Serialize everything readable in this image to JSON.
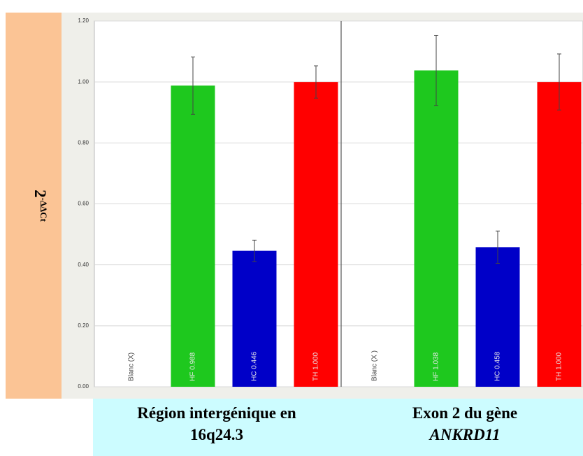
{
  "chart_data": [
    {
      "type": "bar",
      "ylabel": {
        "base": "2",
        "exponent": "-ΔΔCt"
      },
      "xlabel": [
        "Région intergénique en",
        "16q24.3"
      ],
      "values": [
        null,
        0.988,
        0.446,
        1.0
      ],
      "errors": [
        null,
        0.094,
        0.035,
        0.053
      ],
      "value_labels": [
        "Blanc (X)",
        "HF 0.988",
        "HC 0.446",
        "TH 1.000"
      ],
      "colors": [
        null,
        "#1ec81e",
        "#0000c8",
        "#ff0000"
      ],
      "ylim": [
        0,
        1.2
      ],
      "yticks": [
        {
          "value": 0,
          "label": "0.00"
        },
        {
          "value": 0.2,
          "label": "0.20"
        },
        {
          "value": 0.4,
          "label": "0.40"
        },
        {
          "value": 0.6,
          "label": "0.60"
        },
        {
          "value": 0.8,
          "label": "0.80"
        },
        {
          "value": 1,
          "label": "1.00"
        },
        {
          "value": 1.2,
          "label": "1.20"
        }
      ],
      "grid": true
    },
    {
      "type": "bar",
      "xlabel": [
        "Exon 2 du gène",
        "ANKRD11"
      ],
      "values": [
        null,
        1.038,
        0.458,
        1.0
      ],
      "errors": [
        null,
        0.115,
        0.053,
        0.092
      ],
      "value_labels": [
        "Blanc (X )",
        "HF 1.038",
        "HC 0.458",
        "TH 1.000"
      ],
      "colors": [
        null,
        "#1ec81e",
        "#0000c8",
        "#ff0000"
      ],
      "ylim": [
        0,
        1.2
      ],
      "yticks": [
        {
          "value": 0,
          "label": "0.00"
        },
        {
          "value": 0.2,
          "label": "0.20"
        },
        {
          "value": 0.4,
          "label": "0.40"
        },
        {
          "value": 0.6,
          "label": "0.60"
        },
        {
          "value": 0.8,
          "label": "0.80"
        },
        {
          "value": 1,
          "label": "1.00"
        },
        {
          "value": 1.2,
          "label": "1.20"
        }
      ],
      "grid": true
    }
  ]
}
